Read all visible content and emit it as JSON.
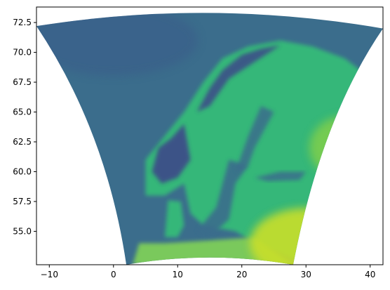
{
  "chart_data": {
    "type": "heatmap",
    "title": "",
    "xlabel": "",
    "ylabel": "",
    "xlim": [
      -12,
      42
    ],
    "ylim": [
      52.2,
      73.8
    ],
    "x_ticks": [
      -10,
      0,
      10,
      20,
      30,
      40
    ],
    "x_tick_labels": [
      "−10",
      "0",
      "10",
      "20",
      "30",
      "40"
    ],
    "y_ticks": [
      55.0,
      57.5,
      60.0,
      62.5,
      65.0,
      67.5,
      70.0,
      72.5
    ],
    "y_tick_labels": [
      "55.0",
      "57.5",
      "60.0",
      "62.5",
      "65.0",
      "67.5",
      "70.0",
      "72.5"
    ],
    "colormap": "viridis",
    "domain_corners_lonlat": {
      "top_left": [
        -12.0,
        72.2
      ],
      "top_middle": [
        15.0,
        73.8
      ],
      "top_right": [
        42.0,
        72.0
      ],
      "bottom_right": [
        28.0,
        52.2
      ],
      "bottom_middle": [
        15.0,
        52.7
      ],
      "bottom_left": [
        2.0,
        52.2
      ]
    },
    "features": {
      "sea_value": 0.3,
      "land_value": 0.55,
      "mountain_value": 0.05,
      "southeast_value": 0.95
    },
    "grid": false,
    "legend": "none"
  },
  "colors": {
    "sea": "#3b6d8c",
    "land_low": "#7ac95c",
    "land_mid": "#35b779",
    "mountain": "#3e4989",
    "southeast": "#c9df2a",
    "axis": "#000000",
    "background": "#ffffff"
  }
}
